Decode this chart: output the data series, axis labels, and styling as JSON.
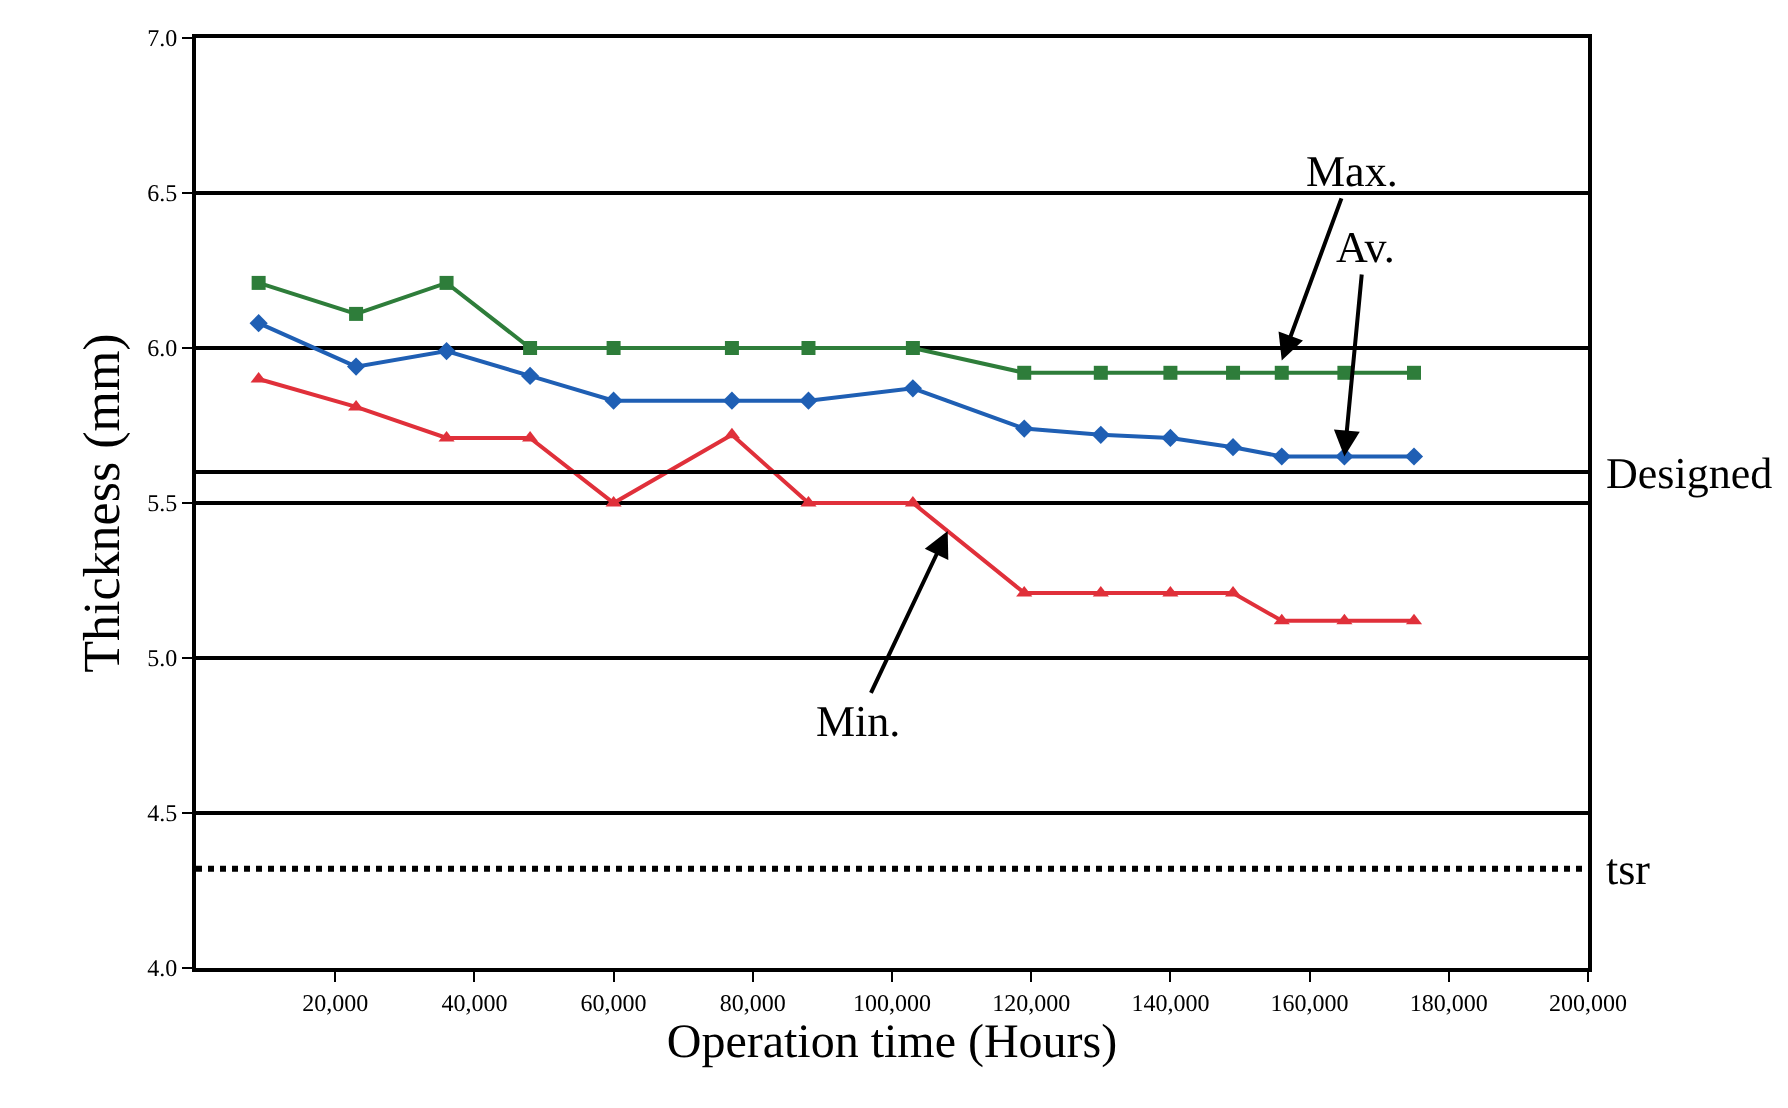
{
  "chart_data": {
    "type": "line",
    "xlabel": "Operation time (Hours)",
    "ylabel": "Thickness (mm)",
    "x": [
      9000,
      23000,
      36000,
      48000,
      60000,
      77000,
      88000,
      103000,
      119000,
      130000,
      140000,
      149000,
      156000,
      165000,
      175000
    ],
    "series": [
      {
        "color": "#2e7d3a",
        "marker": "square",
        "values": [
          6.21,
          6.11,
          6.21,
          6.0,
          6.0,
          6.0,
          6.0,
          6.0,
          5.92,
          5.92,
          5.92,
          5.92,
          5.92,
          5.92,
          5.92
        ]
      },
      {
        "color": "#1f5fb4",
        "marker": "diamond",
        "values": [
          6.08,
          5.94,
          5.99,
          5.91,
          5.83,
          5.83,
          5.83,
          5.87,
          5.74,
          5.72,
          5.71,
          5.68,
          5.65,
          5.65,
          5.65
        ]
      },
      {
        "color": "#e0303a",
        "marker": "triangle",
        "values": [
          5.9,
          5.81,
          5.71,
          5.71,
          5.5,
          5.72,
          5.5,
          5.5,
          5.21,
          5.21,
          5.21,
          5.21,
          5.12,
          5.12,
          5.12
        ]
      }
    ],
    "xlim": [
      0,
      200000
    ],
    "xticks": [
      {
        "value": 20000,
        "label": "20,000"
      },
      {
        "value": 40000,
        "label": "40,000"
      },
      {
        "value": 60000,
        "label": "60,000"
      },
      {
        "value": 80000,
        "label": "80,000"
      },
      {
        "value": 100000,
        "label": "100,000"
      },
      {
        "value": 120000,
        "label": "120,000"
      },
      {
        "value": 140000,
        "label": "140,000"
      },
      {
        "value": 160000,
        "label": "160,000"
      },
      {
        "value": 180000,
        "label": "180,000"
      },
      {
        "value": 200000,
        "label": "200,000"
      }
    ],
    "ylim": [
      4.0,
      7.0
    ],
    "yticks": [
      {
        "value": 4.0,
        "label": "4.0"
      },
      {
        "value": 4.5,
        "label": "4.5"
      },
      {
        "value": 5.0,
        "label": "5.0"
      },
      {
        "value": 5.5,
        "label": "5.5"
      },
      {
        "value": 6.0,
        "label": "6.0"
      },
      {
        "value": 6.5,
        "label": "6.5"
      },
      {
        "value": 7.0,
        "label": "7.0"
      }
    ],
    "grid": "y",
    "ref_lines": [
      {
        "axis": "y",
        "value": 5.6,
        "label": "Designed",
        "color": "#000000",
        "line_style": "solid"
      },
      {
        "axis": "y",
        "value": 4.32,
        "label": "tsr",
        "color": "#000000",
        "line_style": "dotted"
      }
    ],
    "annotations": [
      {
        "text": "Max.",
        "x": 156000,
        "y": 5.96
      },
      {
        "text": "Av.",
        "x": 165000,
        "y": 5.65
      },
      {
        "text": "Min.",
        "x": 108000,
        "y": 5.41
      }
    ]
  }
}
